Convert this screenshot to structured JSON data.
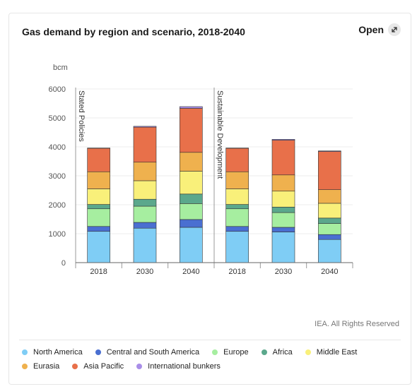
{
  "title": "Gas demand by region and scenario, 2018-2040",
  "open_label": "Open",
  "credit": "IEA. All Rights Reserved",
  "chart_data": {
    "type": "bar",
    "stacked": true,
    "unit_label": "bcm",
    "ylim": [
      0,
      6000
    ],
    "yticks": [
      "0",
      "1000",
      "2000",
      "3000",
      "4000",
      "5000",
      "6000"
    ],
    "groups": [
      {
        "name": "Stated Policies",
        "categories": [
          "2018",
          "2030",
          "2040"
        ]
      },
      {
        "name": "Sustainable Development",
        "categories": [
          "2018",
          "2030",
          "2040"
        ]
      }
    ],
    "categories": [
      "2018",
      "2030",
      "2040",
      "2018",
      "2030",
      "2040"
    ],
    "series": [
      {
        "name": "North America",
        "color": "#7fcdf5",
        "values": [
          1080,
          1190,
          1220,
          1080,
          1060,
          800
        ]
      },
      {
        "name": "Central and South America",
        "color": "#4a6fd1",
        "values": [
          170,
          200,
          270,
          170,
          160,
          170
        ]
      },
      {
        "name": "Europe",
        "color": "#a6eea0",
        "values": [
          610,
          560,
          550,
          610,
          510,
          380
        ]
      },
      {
        "name": "Africa",
        "color": "#5ba88c",
        "values": [
          150,
          240,
          330,
          150,
          190,
          190
        ]
      },
      {
        "name": "Middle East",
        "color": "#f9f07a",
        "values": [
          540,
          640,
          790,
          540,
          550,
          510
        ]
      },
      {
        "name": "Eurasia",
        "color": "#efb14e",
        "values": [
          590,
          640,
          650,
          590,
          560,
          470
        ]
      },
      {
        "name": "Asia Pacific",
        "color": "#e8704a",
        "values": [
          810,
          1210,
          1520,
          810,
          1200,
          1320
        ]
      },
      {
        "name": "International bunkers",
        "color": "#a98ee8",
        "values": [
          10,
          30,
          60,
          10,
          30,
          20
        ]
      }
    ]
  }
}
